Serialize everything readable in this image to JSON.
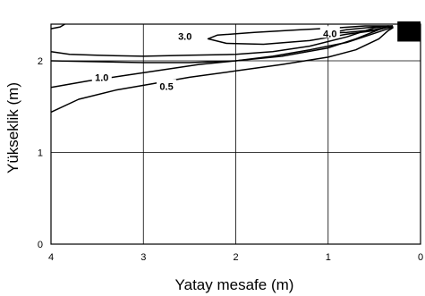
{
  "chart_data": {
    "type": "line",
    "title": "",
    "xlabel": "Yatay mesafe (m)",
    "ylabel": "Yükseklik  (m)",
    "xlim": [
      4,
      0
    ],
    "ylim": [
      0,
      2.4
    ],
    "x_reversed": true,
    "grid": true,
    "x_ticks": [
      {
        "value": 4,
        "label": "4"
      },
      {
        "value": 3,
        "label": "3"
      },
      {
        "value": 2,
        "label": "2"
      },
      {
        "value": 1,
        "label": "1"
      },
      {
        "value": 0,
        "label": "0"
      }
    ],
    "y_ticks": [
      {
        "value": 0,
        "label": "0"
      },
      {
        "value": 1,
        "label": "1"
      },
      {
        "value": 2,
        "label": "2"
      }
    ],
    "source_marker": {
      "x": [
        0.25,
        0.0
      ],
      "y": [
        2.21,
        2.43
      ]
    },
    "series": [
      {
        "name": "0.5",
        "label_at": {
          "x": 2.75,
          "y": 1.72
        },
        "points": [
          [
            4.0,
            1.44
          ],
          [
            3.7,
            1.58
          ],
          [
            3.3,
            1.68
          ],
          [
            2.9,
            1.75
          ],
          [
            2.5,
            1.82
          ],
          [
            2.0,
            1.89
          ],
          [
            1.5,
            1.96
          ],
          [
            1.0,
            2.04
          ],
          [
            0.7,
            2.12
          ],
          [
            0.45,
            2.24
          ],
          [
            0.35,
            2.33
          ],
          [
            0.3,
            2.36
          ],
          [
            0.35,
            2.37
          ],
          [
            0.45,
            2.34
          ],
          [
            0.7,
            2.24
          ],
          [
            1.0,
            2.14
          ],
          [
            1.5,
            2.05
          ],
          [
            2.0,
            2.0
          ],
          [
            2.5,
            1.98
          ],
          [
            3.0,
            1.98
          ],
          [
            3.5,
            1.99
          ],
          [
            4.0,
            2.0
          ]
        ]
      },
      {
        "name": "1.0",
        "label_at": {
          "x": 3.45,
          "y": 1.82
        },
        "points": [
          [
            4.0,
            1.71
          ],
          [
            3.6,
            1.78
          ],
          [
            3.2,
            1.84
          ],
          [
            2.8,
            1.9
          ],
          [
            2.4,
            1.96
          ],
          [
            2.0,
            2.0
          ],
          [
            1.6,
            2.05
          ],
          [
            1.2,
            2.12
          ],
          [
            0.8,
            2.2
          ],
          [
            0.5,
            2.3
          ],
          [
            0.35,
            2.35
          ],
          [
            0.3,
            2.37
          ],
          [
            0.35,
            2.38
          ],
          [
            0.5,
            2.36
          ],
          [
            0.8,
            2.26
          ],
          [
            1.2,
            2.16
          ],
          [
            1.6,
            2.1
          ],
          [
            2.0,
            2.07
          ],
          [
            2.5,
            2.06
          ],
          [
            3.0,
            2.05
          ],
          [
            3.5,
            2.06
          ],
          [
            3.8,
            2.07
          ],
          [
            4.0,
            2.1
          ]
        ]
      },
      {
        "name": "3.0",
        "label_at": {
          "x": 2.55,
          "y": 2.27
        },
        "points": [
          [
            0.3,
            2.38
          ],
          [
            0.5,
            2.33
          ],
          [
            0.8,
            2.29
          ],
          [
            1.2,
            2.22
          ],
          [
            1.7,
            2.18
          ],
          [
            2.1,
            2.19
          ],
          [
            2.3,
            2.24
          ],
          [
            2.2,
            2.28
          ],
          [
            1.8,
            2.31
          ],
          [
            1.3,
            2.34
          ],
          [
            0.9,
            2.36
          ],
          [
            0.6,
            2.38
          ],
          [
            0.3,
            2.38
          ]
        ]
      },
      {
        "name": "4.0",
        "label_at": {
          "x": 0.98,
          "y": 2.3
        },
        "points": [
          [
            0.3,
            2.38
          ],
          [
            0.5,
            2.34
          ],
          [
            0.8,
            2.31
          ],
          [
            1.0,
            2.3
          ],
          [
            0.8,
            2.34
          ],
          [
            0.5,
            2.37
          ],
          [
            0.3,
            2.38
          ]
        ]
      },
      {
        "name": "",
        "points": [
          [
            4.0,
            2.35
          ],
          [
            3.9,
            2.37
          ],
          [
            3.85,
            2.4
          ]
        ]
      }
    ]
  }
}
